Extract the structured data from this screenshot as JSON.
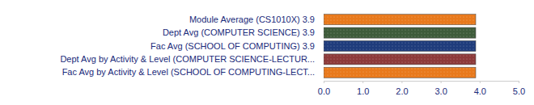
{
  "chart_data": {
    "type": "bar",
    "orientation": "horizontal",
    "categories": [
      "Module Average (CS1010X)  3.9",
      "Dept Avg (COMPUTER SCIENCE)  3.9",
      "Fac Avg (SCHOOL OF COMPUTING)  3.9",
      "Dept Avg by Activity & Level (COMPUTER SCIENCE-LECTUR...",
      "Fac Avg by Activity & Level (SCHOOL OF COMPUTING-LECT..."
    ],
    "values": [
      3.9,
      3.9,
      3.9,
      3.9,
      3.9
    ],
    "colors": [
      "#e8791c",
      "#3e5c3b",
      "#1f3c7c",
      "#8d3a3a",
      "#e8791c"
    ],
    "xlim": [
      0,
      5
    ],
    "xticks": [
      {
        "value": 0,
        "label": "0.0"
      },
      {
        "value": 1,
        "label": "1.0"
      },
      {
        "value": 2,
        "label": "2.0"
      },
      {
        "value": 3,
        "label": "3.0"
      },
      {
        "value": 4,
        "label": "4.0"
      },
      {
        "value": 5,
        "label": "5.0"
      }
    ],
    "grid": false
  }
}
